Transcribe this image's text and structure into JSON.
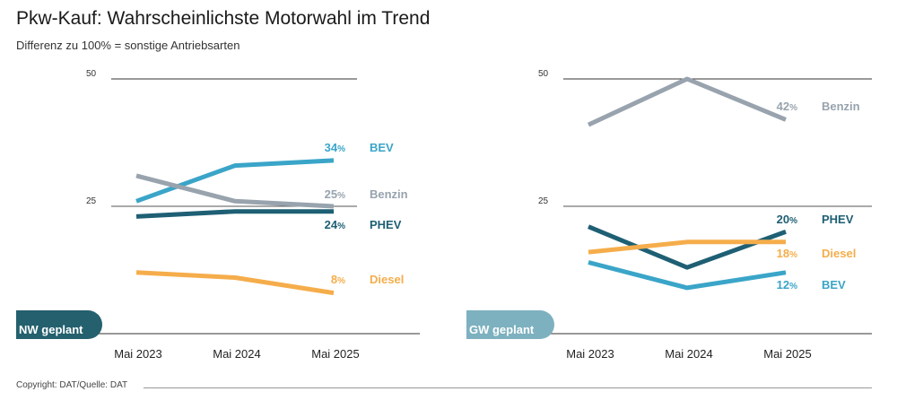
{
  "title": "Pkw-Kauf: Wahrscheinlichste Motorwahl im Trend",
  "subtitle": "Differenz zu 100% = sonstige Antriebsarten",
  "footer": "Copyright: DAT/Quelle: DAT",
  "colors": {
    "BEV": "#3aa5c8",
    "Benzin": "#98a3ae",
    "PHEV": "#1e5f74",
    "Diesel": "#f5ad4b",
    "badge_nw": "#24606e",
    "badge_gw": "#7db1bf"
  },
  "chart_data": [
    {
      "type": "line",
      "panel": "NW geplant",
      "categories": [
        "Mai 2023",
        "Mai 2024",
        "Mai 2025"
      ],
      "ylim": [
        0,
        50
      ],
      "yticks": [
        {
          "value": 50,
          "label": "50"
        },
        {
          "value": 25,
          "label": "25"
        }
      ],
      "series": [
        {
          "name": "BEV",
          "values": [
            26,
            33,
            34
          ],
          "end_label": "34%",
          "end_value": "34",
          "unit": "%"
        },
        {
          "name": "Benzin",
          "values": [
            31,
            26,
            25
          ],
          "end_label": "25%",
          "end_value": "25",
          "unit": "%"
        },
        {
          "name": "PHEV",
          "values": [
            23,
            24,
            24
          ],
          "end_label": "24%",
          "end_value": "24",
          "unit": "%"
        },
        {
          "name": "Diesel",
          "values": [
            12,
            11,
            8
          ],
          "end_label": "8%",
          "end_value": "8",
          "unit": "%"
        }
      ]
    },
    {
      "type": "line",
      "panel": "GW geplant",
      "categories": [
        "Mai 2023",
        "Mai 2024",
        "Mai 2025"
      ],
      "ylim": [
        0,
        50
      ],
      "yticks": [
        {
          "value": 50,
          "label": "50"
        },
        {
          "value": 25,
          "label": "25"
        }
      ],
      "series": [
        {
          "name": "Benzin",
          "values": [
            41,
            50,
            42
          ],
          "end_label": "42%",
          "end_value": "42",
          "unit": "%"
        },
        {
          "name": "PHEV",
          "values": [
            21,
            13,
            20
          ],
          "end_label": "20%",
          "end_value": "20",
          "unit": "%"
        },
        {
          "name": "Diesel",
          "values": [
            16,
            18,
            18
          ],
          "end_label": "18%",
          "end_value": "18",
          "unit": "%"
        },
        {
          "name": "BEV",
          "values": [
            14,
            9,
            12
          ],
          "end_label": "12%",
          "end_value": "12",
          "unit": "%"
        }
      ]
    }
  ]
}
